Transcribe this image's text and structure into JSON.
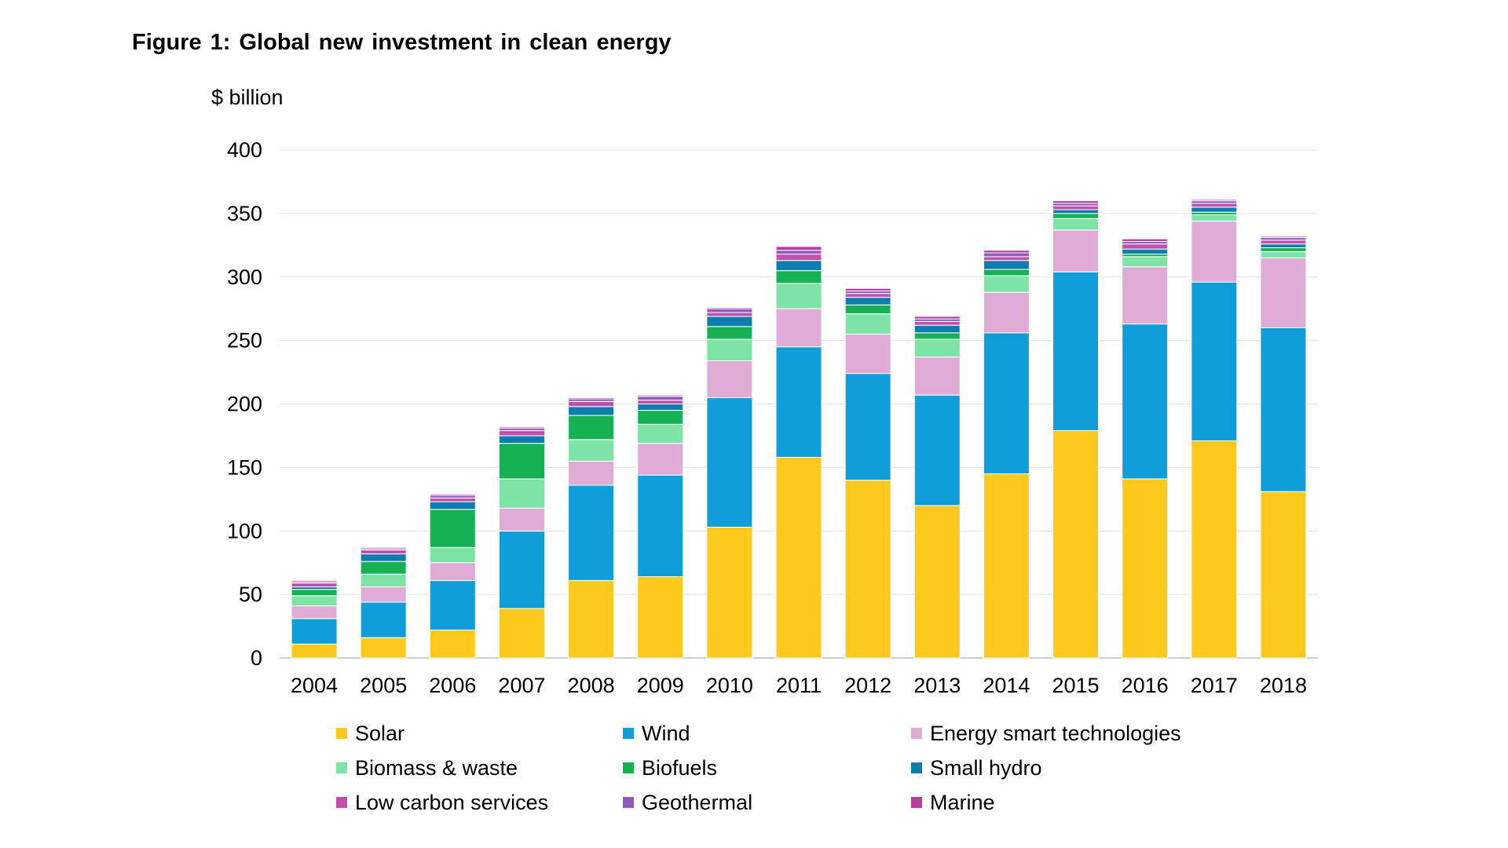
{
  "chart_data": {
    "type": "bar",
    "stacked": true,
    "title": "Figure 1: Global new investment in clean energy",
    "ylabel": "$ billion",
    "xlabel": "",
    "ylim": [
      0,
      400
    ],
    "yticks": [
      0,
      50,
      100,
      150,
      200,
      250,
      300,
      350,
      400
    ],
    "grid": true,
    "legend_position": "bottom",
    "categories": [
      "2004",
      "2005",
      "2006",
      "2007",
      "2008",
      "2009",
      "2010",
      "2011",
      "2012",
      "2013",
      "2014",
      "2015",
      "2016",
      "2017",
      "2018"
    ],
    "series": [
      {
        "name": "Solar",
        "color": "#FCC91C",
        "values": [
          11,
          16,
          22,
          39,
          61,
          64,
          103,
          158,
          140,
          120,
          145,
          179,
          141,
          171,
          131
        ]
      },
      {
        "name": "Wind",
        "color": "#109EDA",
        "values": [
          20,
          28,
          39,
          61,
          75,
          80,
          102,
          87,
          84,
          87,
          111,
          125,
          122,
          125,
          129
        ]
      },
      {
        "name": "Energy smart technologies",
        "color": "#DFACD6",
        "values": [
          10,
          12,
          14,
          18,
          19,
          25,
          29,
          30,
          31,
          30,
          32,
          33,
          45,
          48,
          55
        ]
      },
      {
        "name": "Biomass & waste",
        "color": "#7EE3A6",
        "values": [
          8,
          10,
          12,
          23,
          17,
          15,
          17,
          20,
          16,
          14,
          13,
          9,
          8,
          5,
          5
        ]
      },
      {
        "name": "Biofuels",
        "color": "#16B153",
        "values": [
          5,
          10,
          30,
          28,
          19,
          11,
          10,
          10,
          7,
          5,
          5,
          4,
          2,
          2,
          3
        ]
      },
      {
        "name": "Small hydro",
        "color": "#0E7DAE",
        "values": [
          2,
          6,
          6,
          6,
          7,
          5,
          8,
          8,
          6,
          6,
          7,
          3,
          4,
          4,
          3
        ]
      },
      {
        "name": "Low carbon services",
        "color": "#C24FA9",
        "values": [
          3,
          3,
          3,
          4,
          4,
          3,
          3,
          5,
          3,
          3,
          3,
          3,
          4,
          3,
          3
        ]
      },
      {
        "name": "Geothermal",
        "color": "#8D5CBF",
        "values": [
          1,
          1,
          2,
          2,
          2,
          3,
          3,
          3,
          2,
          2,
          3,
          2,
          2,
          2,
          2
        ]
      },
      {
        "name": "Marine",
        "color": "#B73E9C",
        "values": [
          1,
          1,
          1,
          1,
          1,
          1,
          1,
          3,
          2,
          2,
          2,
          2,
          2,
          1,
          1
        ]
      }
    ]
  }
}
